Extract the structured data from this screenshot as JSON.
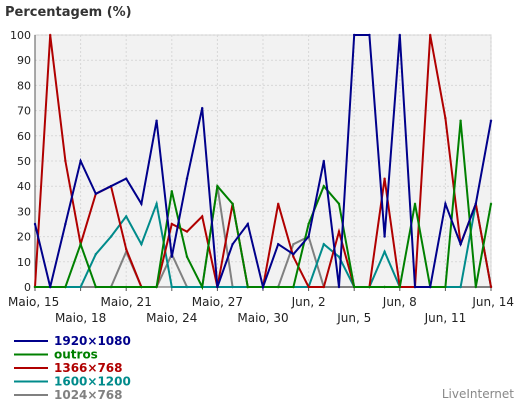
{
  "chart_data": {
    "type": "line",
    "title": "Percentagem (%)",
    "ylim": [
      0,
      100
    ],
    "yticks": [
      0,
      10,
      20,
      30,
      40,
      50,
      60,
      70,
      80,
      90,
      100
    ],
    "grid": true,
    "legend_placement": "bottom-left",
    "x": [
      "Maio, 15",
      "Maio, 16",
      "Maio, 17",
      "Maio, 18",
      "Maio, 19",
      "Maio, 20",
      "Maio, 21",
      "Maio, 22",
      "Maio, 23",
      "Maio, 24",
      "Maio, 25",
      "Maio, 26",
      "Maio, 27",
      "Maio, 28",
      "Maio, 29",
      "Maio, 30",
      "Maio, 31",
      "Jun, 1",
      "Jun, 2",
      "Jun, 3",
      "Jun, 4",
      "Jun, 5",
      "Jun, 6",
      "Jun, 7",
      "Jun, 8",
      "Jun, 9",
      "Jun, 10",
      "Jun, 11",
      "Jun, 12",
      "Jun, 13",
      "Jun, 14"
    ],
    "xtick_labels": [
      {
        "index": 0,
        "label": "Maio, 15",
        "row": 1
      },
      {
        "index": 3,
        "label": "Maio, 18",
        "row": 2
      },
      {
        "index": 6,
        "label": "Maio, 21",
        "row": 1
      },
      {
        "index": 9,
        "label": "Maio, 24",
        "row": 2
      },
      {
        "index": 12,
        "label": "Maio, 27",
        "row": 1
      },
      {
        "index": 15,
        "label": "Maio, 30",
        "row": 2
      },
      {
        "index": 18,
        "label": "Jun, 2",
        "row": 1
      },
      {
        "index": 21,
        "label": "Jun, 5",
        "row": 2
      },
      {
        "index": 24,
        "label": "Jun, 8",
        "row": 1
      },
      {
        "index": 27,
        "label": "Jun, 11",
        "row": 2
      },
      {
        "index": 30,
        "label": "Jun, 14",
        "row": 1
      }
    ],
    "series": [
      {
        "name": "1920×1080",
        "color": "#00008b",
        "values": [
          25,
          0,
          25,
          50,
          37,
          40,
          43,
          33,
          66,
          12,
          43,
          71,
          0,
          17,
          25,
          0,
          17,
          13,
          20,
          50,
          0,
          100,
          100,
          20,
          100,
          0,
          0,
          33,
          17,
          33,
          66
        ]
      },
      {
        "name": "outros",
        "color": "#008000",
        "values": [
          0,
          0,
          0,
          17,
          0,
          0,
          0,
          0,
          0,
          38,
          12,
          0,
          40,
          33,
          0,
          0,
          0,
          0,
          25,
          40,
          33,
          0,
          0,
          0,
          0,
          33,
          0,
          0,
          66,
          0,
          33
        ]
      },
      {
        "name": "1366×768",
        "color": "#b00000",
        "values": [
          0,
          100,
          50,
          17,
          37,
          40,
          15,
          0,
          0,
          25,
          22,
          28,
          0,
          33,
          0,
          0,
          33,
          12,
          0,
          0,
          22,
          0,
          0,
          43,
          0,
          0,
          100,
          67,
          17,
          33,
          0
        ]
      },
      {
        "name": "1600×1200",
        "color": "#008b8b",
        "values": [
          0,
          0,
          0,
          0,
          13,
          20,
          28,
          17,
          33,
          0,
          0,
          0,
          0,
          0,
          0,
          0,
          0,
          0,
          0,
          17,
          12,
          0,
          0,
          14,
          0,
          0,
          0,
          0,
          0,
          33,
          0
        ]
      },
      {
        "name": "1024×768",
        "color": "#808080",
        "values": [
          0,
          0,
          0,
          0,
          0,
          0,
          14,
          0,
          0,
          13,
          0,
          0,
          40,
          0,
          0,
          0,
          0,
          17,
          20,
          0,
          0,
          0,
          0,
          0,
          0,
          0,
          0,
          0,
          0,
          0,
          0
        ]
      }
    ]
  },
  "branding": {
    "label": "LiveInternet"
  }
}
